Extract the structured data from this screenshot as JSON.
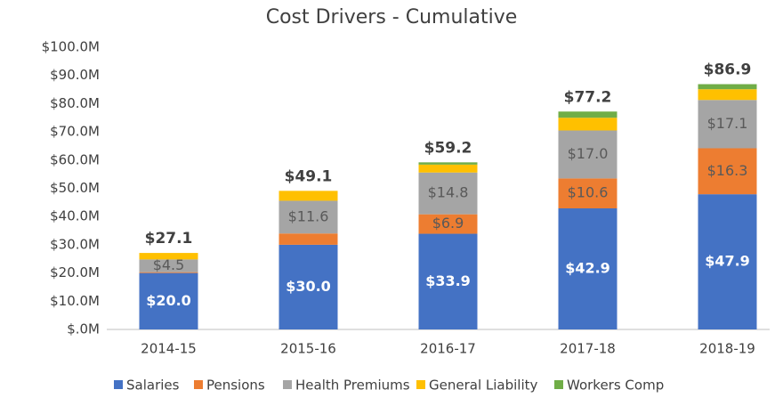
{
  "chart_data": {
    "type": "stacked_bar",
    "title": "Cost Drivers - Cumulative",
    "categories": [
      "2014-15",
      "2015-16",
      "2016-17",
      "2017-18",
      "2018-19"
    ],
    "series": [
      {
        "name": "Salaries",
        "color": "#4472c4",
        "values": [
          20.0,
          30.0,
          33.9,
          42.9,
          47.9
        ],
        "value_labels": [
          "$20.0",
          "$30.0",
          "$33.9",
          "$42.9",
          "$47.9"
        ]
      },
      {
        "name": "Pensions",
        "color": "#ed7d31",
        "values": [
          0.3,
          4.0,
          6.9,
          10.6,
          16.3
        ],
        "value_labels": [
          null,
          null,
          "$6.9",
          "$10.6",
          "$16.3"
        ]
      },
      {
        "name": "Health Premiums",
        "color": "#a5a5a5",
        "values": [
          4.5,
          11.6,
          14.8,
          17.0,
          17.1
        ],
        "value_labels": [
          "$4.5",
          "$11.6",
          "$14.8",
          "$17.0",
          "$17.1"
        ]
      },
      {
        "name": "General Liability",
        "color": "#ffc000",
        "values": [
          2.3,
          3.5,
          2.8,
          4.5,
          3.8
        ]
      },
      {
        "name": "Workers Comp",
        "color": "#70ad47",
        "values": [
          0,
          0,
          0.8,
          2.2,
          1.8
        ]
      }
    ],
    "totals": [
      27.1,
      49.1,
      59.2,
      77.2,
      86.9
    ],
    "total_labels": [
      "$27.1",
      "$49.1",
      "$59.2",
      "$77.2",
      "$86.9"
    ],
    "ylim": [
      0,
      100
    ],
    "yticks": [
      {
        "value": 0,
        "label": "$.0M"
      },
      {
        "value": 10,
        "label": "$10.0M"
      },
      {
        "value": 20,
        "label": "$20.0M"
      },
      {
        "value": 30,
        "label": "$30.0M"
      },
      {
        "value": 40,
        "label": "$40.0M"
      },
      {
        "value": 50,
        "label": "$50.0M"
      },
      {
        "value": 60,
        "label": "$60.0M"
      },
      {
        "value": 70,
        "label": "$70.0M"
      },
      {
        "value": 80,
        "label": "$80.0M"
      },
      {
        "value": 90,
        "label": "$90.0M"
      },
      {
        "value": 100,
        "label": "$100.0M"
      }
    ],
    "grid": false,
    "legend": "bottom"
  }
}
